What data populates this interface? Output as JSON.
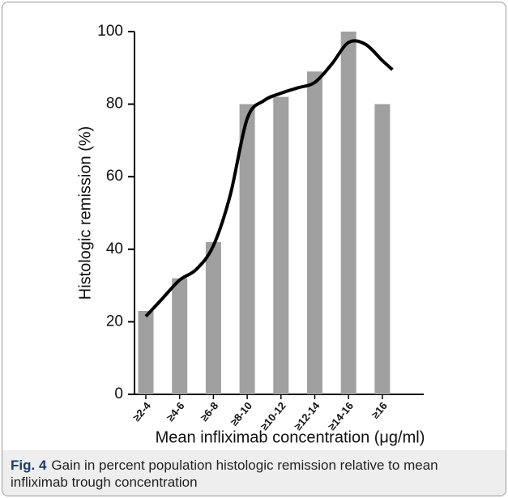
{
  "chart_data": {
    "type": "bar",
    "x_label": "Mean infliximab concentration (μg/ml)",
    "y_label": "Histologic remission (%)",
    "categories": [
      "≥2-4",
      "≥4-6",
      "≥6-8",
      "≥8-10",
      "≥10-12",
      "≥12-14",
      "≥14-16",
      "≥16"
    ],
    "values": [
      23,
      32,
      42,
      80,
      82,
      89,
      100,
      80
    ],
    "color": "#a0a0a0",
    "ylim": [
      0,
      100
    ],
    "yticks": [
      0,
      20,
      40,
      60,
      80,
      100
    ],
    "curve": {
      "color": "#000000",
      "x": [
        0,
        0.5,
        1,
        1.5,
        2,
        2.5,
        3,
        3.5,
        4,
        4.5,
        5,
        5.5,
        6,
        6.5,
        7,
        7.3
      ],
      "values": [
        21.5,
        26.5,
        31.5,
        34.5,
        41,
        55,
        76,
        81,
        83,
        84.5,
        86,
        91,
        97,
        96.5,
        92,
        89.5
      ]
    }
  },
  "caption": {
    "label": "Fig. 4",
    "text": "Gain in percent population histologic remission relative to mean infliximab trough concentration"
  }
}
